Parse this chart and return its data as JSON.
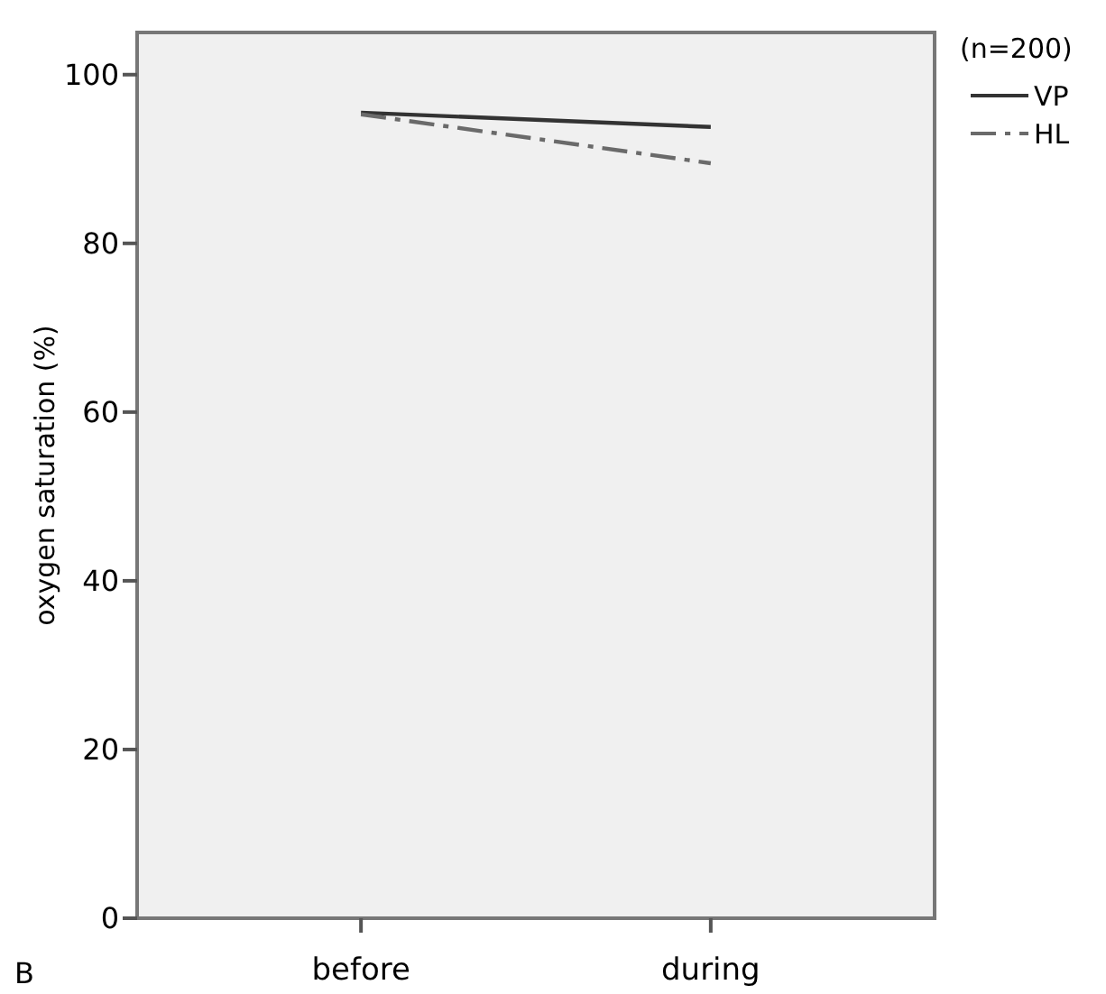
{
  "chart_data": {
    "type": "line",
    "ylabel": "oxygen saturation (%)",
    "legend_title": "(n=200)",
    "categories": [
      "before",
      "during"
    ],
    "series": [
      {
        "name": "VP",
        "color": "#333333",
        "values": [
          95.5,
          93.8
        ],
        "line_style": "solid"
      },
      {
        "name": "HL",
        "color": "#6a6a6a",
        "values": [
          95.3,
          89.5
        ],
        "line_style": "dashed"
      }
    ],
    "ylim": [
      0,
      105
    ],
    "yticks": [
      0,
      20,
      40,
      60,
      80,
      100
    ],
    "grid": false,
    "legend": "top right",
    "marker": "none",
    "annotations": [
      "B"
    ]
  }
}
